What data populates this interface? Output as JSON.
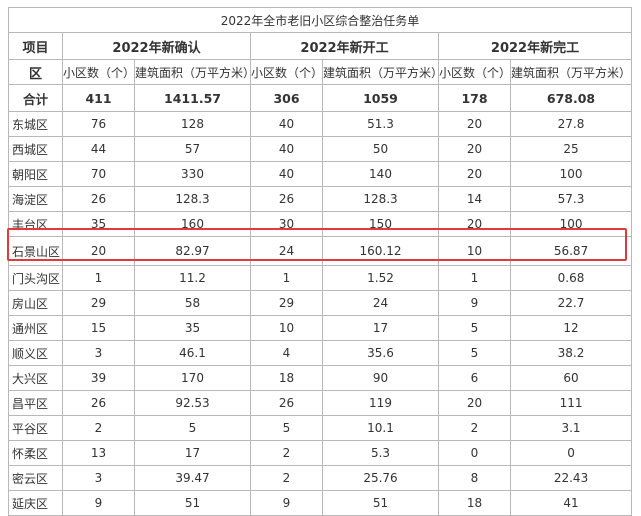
{
  "title": "2022年全市老旧小区综合整治任务单",
  "header": {
    "item_top": "项目",
    "item_bottom": "区",
    "groups": [
      "2022年新确认",
      "2022年新开工",
      "2022年新完工"
    ],
    "sub": [
      "小区数（个）",
      "建筑面积（万平方米）",
      "小区数（个）",
      "建筑面积（万平方米）",
      "小区数（个）",
      "建筑面积（万平方米）"
    ]
  },
  "rows": [
    {
      "name": "合计",
      "vals": [
        "411",
        "1411.57",
        "306",
        "1059",
        "178",
        "678.08"
      ]
    },
    {
      "name": "东城区",
      "vals": [
        "76",
        "128",
        "40",
        "51.3",
        "20",
        "27.8"
      ]
    },
    {
      "name": "西城区",
      "vals": [
        "44",
        "57",
        "40",
        "50",
        "20",
        "25"
      ]
    },
    {
      "name": "朝阳区",
      "vals": [
        "70",
        "330",
        "40",
        "140",
        "20",
        "100"
      ]
    },
    {
      "name": "海淀区",
      "vals": [
        "26",
        "128.3",
        "26",
        "128.3",
        "14",
        "57.3"
      ]
    },
    {
      "name": "丰台区",
      "vals": [
        "35",
        "160",
        "30",
        "150",
        "20",
        "100"
      ]
    },
    {
      "name": "石景山区",
      "vals": [
        "20",
        "82.97",
        "24",
        "160.12",
        "10",
        "56.87"
      ]
    },
    {
      "name": "门头沟区",
      "vals": [
        "1",
        "11.2",
        "1",
        "1.52",
        "1",
        "0.68"
      ]
    },
    {
      "name": "房山区",
      "vals": [
        "29",
        "58",
        "29",
        "24",
        "9",
        "22.7"
      ]
    },
    {
      "name": "通州区",
      "vals": [
        "15",
        "35",
        "10",
        "17",
        "5",
        "12"
      ]
    },
    {
      "name": "顺义区",
      "vals": [
        "3",
        "46.1",
        "4",
        "35.6",
        "5",
        "38.2"
      ]
    },
    {
      "name": "大兴区",
      "vals": [
        "39",
        "170",
        "18",
        "90",
        "6",
        "60"
      ]
    },
    {
      "name": "昌平区",
      "vals": [
        "26",
        "92.53",
        "26",
        "119",
        "20",
        "111"
      ]
    },
    {
      "name": "平谷区",
      "vals": [
        "2",
        "5",
        "5",
        "10.1",
        "2",
        "3.1"
      ]
    },
    {
      "name": "怀柔区",
      "vals": [
        "13",
        "17",
        "2",
        "5.3",
        "0",
        "0"
      ]
    },
    {
      "name": "密云区",
      "vals": [
        "3",
        "39.47",
        "2",
        "25.76",
        "8",
        "22.43"
      ]
    },
    {
      "name": "延庆区",
      "vals": [
        "9",
        "51",
        "9",
        "51",
        "18",
        "41"
      ]
    }
  ]
}
